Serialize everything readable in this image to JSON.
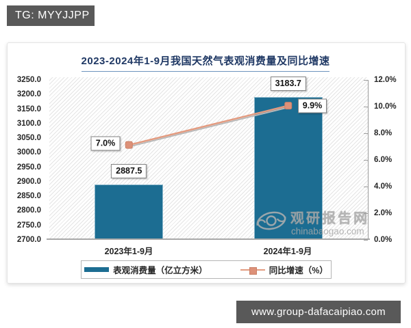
{
  "telegram_badge": {
    "label": "TG: MYYJJPP"
  },
  "footer": {
    "url": "www.group-dafacaipiao.com"
  },
  "watermark": {
    "site_name": "观研报告网",
    "site_domain": "chinabaogao.com"
  },
  "chart_data": {
    "type": "bar",
    "title": "2023-2024年1-9月我国天然气表观消费量及同比增速",
    "categories": [
      "2023年1-9月",
      "2024年1-9月"
    ],
    "series": [
      {
        "name": "表观消费量（亿立方米）",
        "type": "bar",
        "axis": "left",
        "color": "#1c6d92",
        "values": [
          2887.5,
          3183.7
        ],
        "labels": [
          "2887.5",
          "3183.7"
        ]
      },
      {
        "name": "同比增速（%）",
        "type": "line",
        "axis": "right",
        "color": "#e39b80",
        "values": [
          7.0,
          9.9
        ],
        "labels": [
          "7.0%",
          "9.9%"
        ]
      }
    ],
    "left_axis": {
      "min": 2700,
      "max": 3250,
      "step": 50,
      "ticks": [
        "3250.0",
        "3200.0",
        "3150.0",
        "3100.0",
        "3050.0",
        "3000.0",
        "2950.0",
        "2900.0",
        "2850.0",
        "2800.0",
        "2750.0",
        "2700.0"
      ]
    },
    "right_axis": {
      "min": 0,
      "max": 12,
      "step": 2,
      "ticks": [
        "12.0%",
        "10.0%",
        "8.0%",
        "6.0%",
        "4.0%",
        "2.0%",
        "0.0%"
      ]
    },
    "grid": false,
    "legend_position": "bottom",
    "plot_background": "diagonal-hatch"
  }
}
